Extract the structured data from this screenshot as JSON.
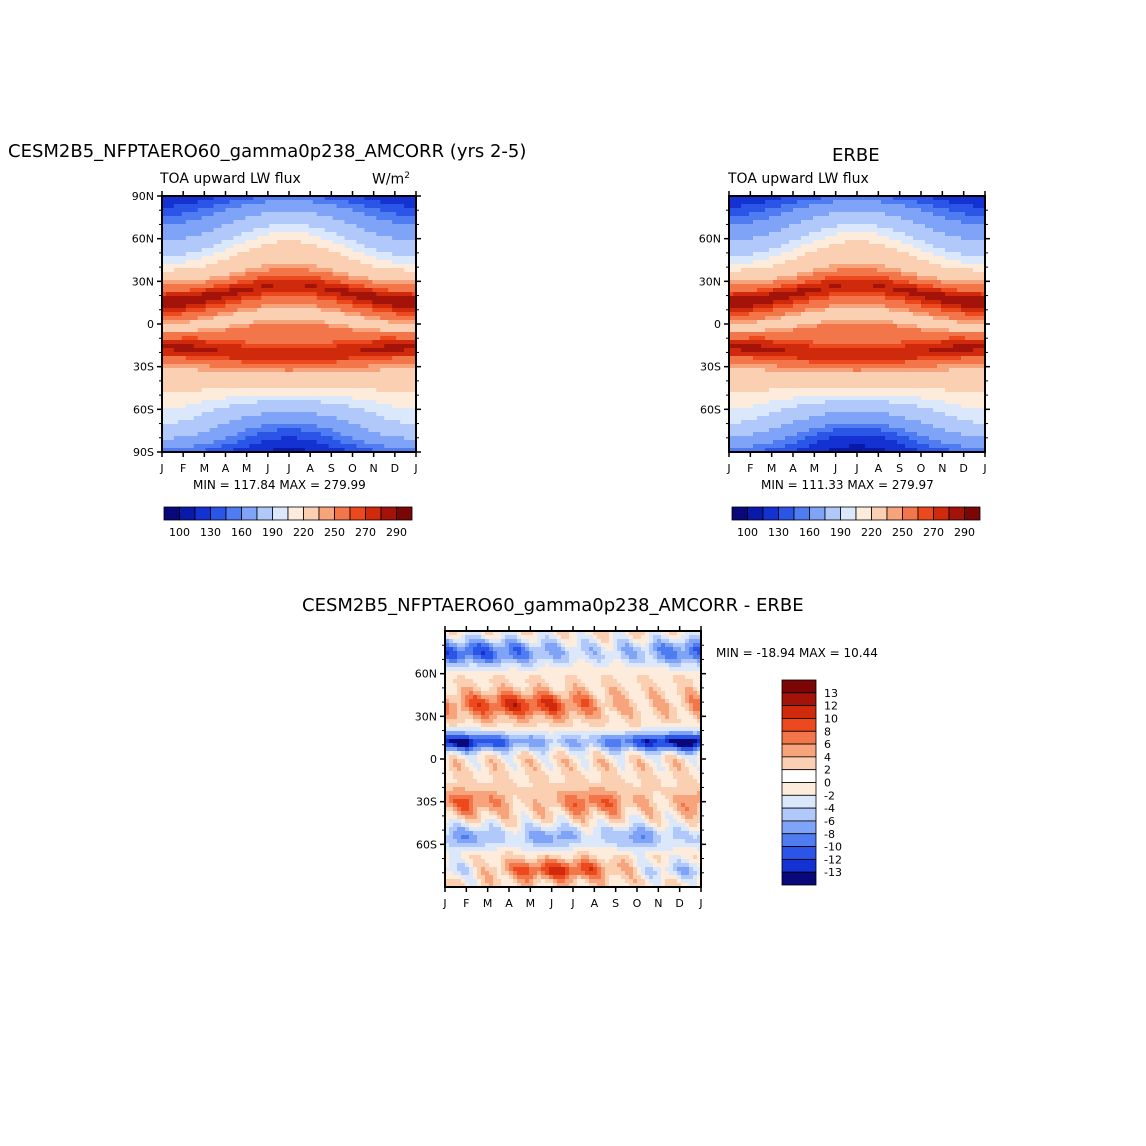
{
  "chart_data": [
    {
      "type": "heatmap",
      "title": "CESM2B5_NFPTAERO60_gamma0p238_AMCORR (yrs 2-5)",
      "variable": "TOA upward LW flux",
      "units": "W/m",
      "units_exp": "2",
      "stats": "MIN = 117.84 MAX = 279.99",
      "min": 117.84,
      "max": 279.99,
      "x_ticks": [
        "J",
        "F",
        "M",
        "A",
        "M",
        "J",
        "J",
        "A",
        "S",
        "O",
        "N",
        "D",
        "J"
      ],
      "y_ticks": [
        "90N",
        "60N",
        "30N",
        "0",
        "30S",
        "60S",
        "90S"
      ],
      "colorbar_labels": [
        "100",
        "130",
        "160",
        "190",
        "220",
        "250",
        "270",
        "290"
      ]
    },
    {
      "type": "heatmap",
      "title": "ERBE",
      "variable": "TOA upward LW flux",
      "stats": "MIN = 111.33 MAX = 279.97",
      "min": 111.33,
      "max": 279.97,
      "x_ticks": [
        "J",
        "F",
        "M",
        "A",
        "M",
        "J",
        "J",
        "A",
        "S",
        "O",
        "N",
        "D",
        "J"
      ],
      "y_ticks": [
        "60N",
        "30N",
        "0",
        "30S",
        "60S"
      ],
      "colorbar_labels": [
        "100",
        "130",
        "160",
        "190",
        "220",
        "250",
        "270",
        "290"
      ]
    },
    {
      "type": "heatmap",
      "title": "CESM2B5_NFPTAERO60_gamma0p238_AMCORR - ERBE",
      "stats": "MIN = -18.94 MAX =  10.44",
      "min": -18.94,
      "max": 10.44,
      "x_ticks": [
        "J",
        "F",
        "M",
        "A",
        "M",
        "J",
        "J",
        "A",
        "S",
        "O",
        "N",
        "D",
        "J"
      ],
      "y_ticks": [
        "60N",
        "30N",
        "0",
        "30S",
        "60S"
      ],
      "colorbar_labels": [
        "13",
        "12",
        "10",
        "8",
        "6",
        "4",
        "2",
        "0",
        "-2",
        "-4",
        "-6",
        "-8",
        "-10",
        "-12",
        "-13"
      ]
    }
  ],
  "palettes": {
    "abs": [
      "#08087a",
      "#0a1aa8",
      "#1432d2",
      "#2a55e6",
      "#4f7cf0",
      "#7fa3f6",
      "#b0c8fa",
      "#dbe8fc",
      "#fdebdc",
      "#fbcfb2",
      "#f7a47d",
      "#f3764b",
      "#ec4a1e",
      "#cf2a0c",
      "#a4130a",
      "#7a0606"
    ],
    "diff": [
      "#7a0606",
      "#a4130a",
      "#cf2a0c",
      "#ec4a1e",
      "#f3764b",
      "#f7a47d",
      "#fbcfb2",
      "#fdebdc",
      "#dbe8fc",
      "#b0c8fa",
      "#7fa3f6",
      "#4f7cf0",
      "#2a55e6",
      "#1432d2",
      "#08087a"
    ]
  }
}
